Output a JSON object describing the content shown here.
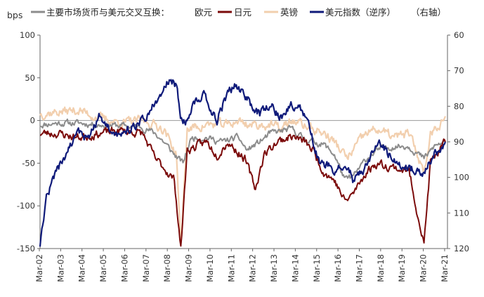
{
  "chart_data": {
    "type": "line",
    "ylabel_left": "bps",
    "ylim_left": [
      -150,
      100
    ],
    "yticks_left": [
      "100",
      "50",
      "0",
      "-50",
      "-100",
      "-150"
    ],
    "ylim_right_inverted": [
      60,
      120
    ],
    "yticks_right": [
      "60",
      "70",
      "80",
      "90",
      "100",
      "110",
      "120"
    ],
    "x_tick_labels": [
      "Mar-02",
      "Mar-03",
      "Mar-04",
      "Mar-05",
      "Mar-06",
      "Mar-07",
      "Mar-08",
      "Mar-09",
      "Mar-10",
      "Mar-11",
      "Mar-12",
      "Mar-13",
      "Mar-14",
      "Mar-15",
      "Mar-16",
      "Mar-17",
      "Mar-18",
      "Mar-19",
      "Mar-20",
      "Mar-21"
    ],
    "legend_title": "主要市场货币与美元交叉互换：",
    "legend_axis_note": "（右轴）",
    "colors": {
      "eur": "#8c8c8c",
      "jpy": "#7b0a0a",
      "gbp": "#f2cfae",
      "dxy": "#0f1a7a"
    },
    "series": [
      {
        "name": "欧元",
        "axis": "left",
        "points": [
          [
            2002.2,
            -5
          ],
          [
            2003,
            -3
          ],
          [
            2004,
            -3
          ],
          [
            2005,
            -5
          ],
          [
            2006,
            -6
          ],
          [
            2007,
            -8
          ],
          [
            2007.6,
            -15
          ],
          [
            2008,
            -25
          ],
          [
            2008.5,
            -40
          ],
          [
            2008.9,
            -50
          ],
          [
            2009.3,
            -20
          ],
          [
            2010,
            -20
          ],
          [
            2010.7,
            -25
          ],
          [
            2011.5,
            -20
          ],
          [
            2011.9,
            -35
          ],
          [
            2012.5,
            -25
          ],
          [
            2013,
            -15
          ],
          [
            2014,
            -10
          ],
          [
            2014.5,
            -20
          ],
          [
            2015,
            -25
          ],
          [
            2015.5,
            -28
          ],
          [
            2016,
            -40
          ],
          [
            2016.5,
            -70
          ],
          [
            2016.9,
            -65
          ],
          [
            2017.5,
            -45
          ],
          [
            2018,
            -35
          ],
          [
            2018.8,
            -30
          ],
          [
            2019.5,
            -30
          ],
          [
            2020.2,
            -45
          ],
          [
            2020.7,
            -30
          ],
          [
            2021.2,
            -25
          ]
        ]
      },
      {
        "name": "日元",
        "axis": "left",
        "points": [
          [
            2002.2,
            -15
          ],
          [
            2003,
            -15
          ],
          [
            2004,
            -20
          ],
          [
            2005,
            -15
          ],
          [
            2006,
            -12
          ],
          [
            2007,
            -15
          ],
          [
            2007.6,
            -45
          ],
          [
            2008,
            -55
          ],
          [
            2008.5,
            -70
          ],
          [
            2008.8,
            -150
          ],
          [
            2009.1,
            -35
          ],
          [
            2010,
            -25
          ],
          [
            2010.5,
            -40
          ],
          [
            2011,
            -25
          ],
          [
            2011.8,
            -45
          ],
          [
            2012.3,
            -80
          ],
          [
            2012.7,
            -40
          ],
          [
            2013.3,
            -25
          ],
          [
            2014,
            -18
          ],
          [
            2014.6,
            -25
          ],
          [
            2015,
            -35
          ],
          [
            2015.5,
            -60
          ],
          [
            2016,
            -70
          ],
          [
            2016.5,
            -95
          ],
          [
            2016.9,
            -85
          ],
          [
            2017.5,
            -60
          ],
          [
            2018,
            -50
          ],
          [
            2018.8,
            -55
          ],
          [
            2019.5,
            -60
          ],
          [
            2020.2,
            -145
          ],
          [
            2020.5,
            -50
          ],
          [
            2021.2,
            -25
          ]
        ]
      },
      {
        "name": "英镑",
        "axis": "left",
        "points": [
          [
            2002.2,
            8
          ],
          [
            2003,
            10
          ],
          [
            2004,
            12
          ],
          [
            2005,
            3
          ],
          [
            2006,
            -3
          ],
          [
            2007,
            0
          ],
          [
            2007.6,
            -5
          ],
          [
            2008,
            -10
          ],
          [
            2008.6,
            -40
          ],
          [
            2008.8,
            -150
          ],
          [
            2009.1,
            -10
          ],
          [
            2010,
            -5
          ],
          [
            2011,
            -5
          ],
          [
            2011.5,
            0
          ],
          [
            2012,
            -5
          ],
          [
            2013,
            -5
          ],
          [
            2013.5,
            -10
          ],
          [
            2014,
            0
          ],
          [
            2015,
            -10
          ],
          [
            2015.5,
            -15
          ],
          [
            2016,
            -25
          ],
          [
            2016.6,
            -45
          ],
          [
            2017,
            -30
          ],
          [
            2017.5,
            -15
          ],
          [
            2018,
            -10
          ],
          [
            2018.8,
            -20
          ],
          [
            2019.5,
            -15
          ],
          [
            2020.2,
            -60
          ],
          [
            2020.5,
            -15
          ],
          [
            2021.2,
            5
          ]
        ]
      },
      {
        "name": "美元指数（逆序）",
        "axis": "right",
        "points": [
          [
            2002.2,
            120
          ],
          [
            2002.5,
            106
          ],
          [
            2003,
            98
          ],
          [
            2003.5,
            93
          ],
          [
            2004,
            88
          ],
          [
            2004.5,
            89
          ],
          [
            2005,
            82
          ],
          [
            2005.5,
            87
          ],
          [
            2006,
            89
          ],
          [
            2006.5,
            86
          ],
          [
            2007,
            84
          ],
          [
            2007.5,
            80
          ],
          [
            2007.9,
            76
          ],
          [
            2008.3,
            72
          ],
          [
            2008.6,
            74
          ],
          [
            2008.9,
            86
          ],
          [
            2009.4,
            80
          ],
          [
            2009.8,
            76
          ],
          [
            2010.2,
            80
          ],
          [
            2010.5,
            84
          ],
          [
            2011,
            76
          ],
          [
            2011.4,
            74
          ],
          [
            2011.9,
            78
          ],
          [
            2012.5,
            82
          ],
          [
            2013,
            80
          ],
          [
            2013.5,
            83
          ],
          [
            2014,
            80
          ],
          [
            2014.5,
            81
          ],
          [
            2014.9,
            88
          ],
          [
            2015.3,
            96
          ],
          [
            2016,
            98
          ],
          [
            2016.5,
            96
          ],
          [
            2016.9,
            101
          ],
          [
            2017.3,
            98
          ],
          [
            2017.8,
            93
          ],
          [
            2018.1,
            89
          ],
          [
            2018.6,
            94
          ],
          [
            2019,
            96
          ],
          [
            2019.5,
            97
          ],
          [
            2020.2,
            100
          ],
          [
            2020.6,
            94
          ],
          [
            2021.2,
            90
          ]
        ]
      }
    ]
  }
}
